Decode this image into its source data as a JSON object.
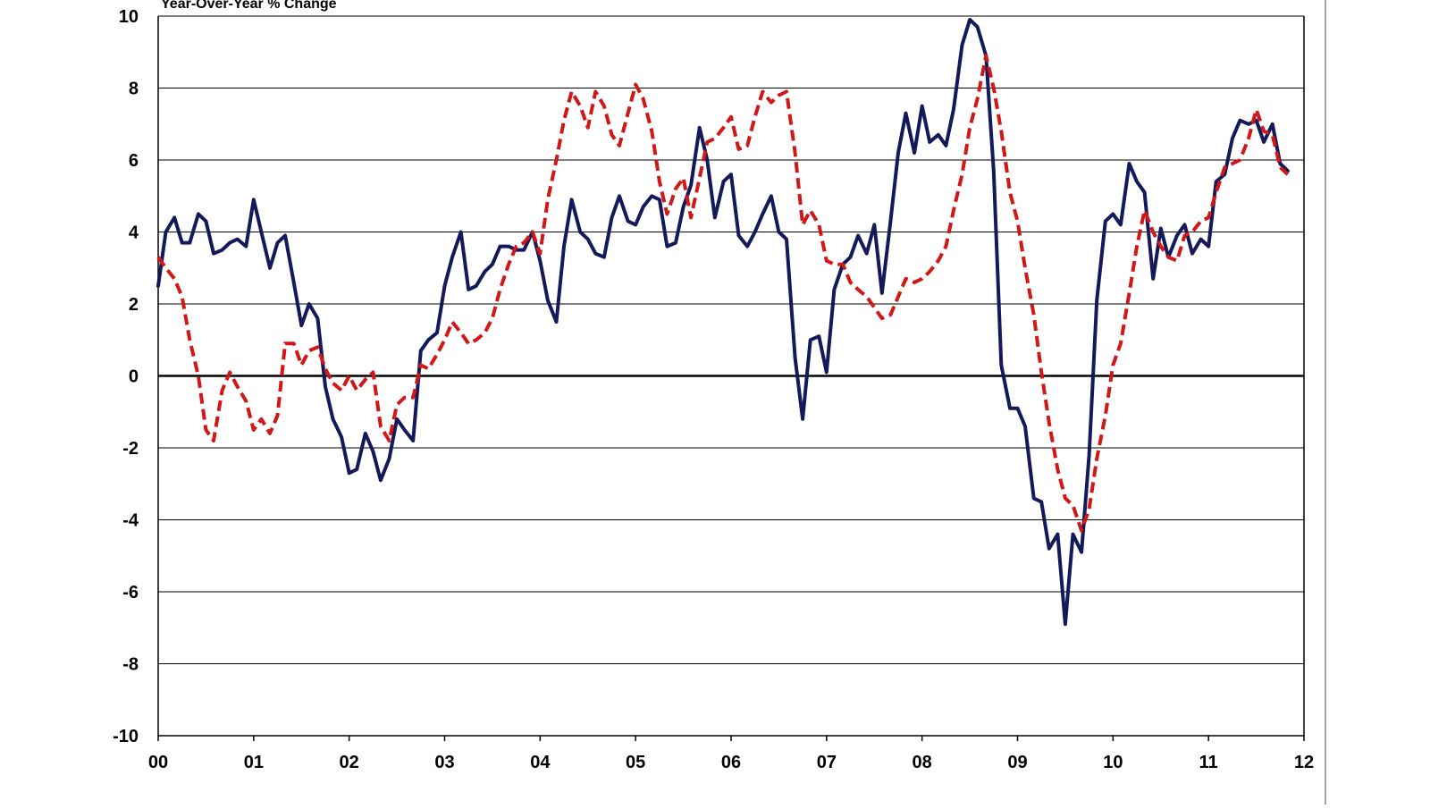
{
  "chart_data": {
    "type": "line",
    "subtitle": "Year-Over-Year % Change",
    "ylim": [
      -10,
      10
    ],
    "y_ticks": [
      "10",
      "8",
      "6",
      "4",
      "2",
      "0",
      "-2",
      "-4",
      "-6",
      "-8",
      "-10"
    ],
    "x_range": [
      0,
      12
    ],
    "x_ticks": [
      "00",
      "01",
      "02",
      "03",
      "04",
      "05",
      "06",
      "07",
      "08",
      "09",
      "10",
      "11",
      "12"
    ],
    "grid": true,
    "zero_line": true,
    "series": [
      {
        "style": "solid",
        "color": "#14195a",
        "points": [
          [
            0.0,
            2.5
          ],
          [
            0.08,
            4.0
          ],
          [
            0.17,
            4.4
          ],
          [
            0.25,
            3.7
          ],
          [
            0.33,
            3.7
          ],
          [
            0.42,
            4.5
          ],
          [
            0.5,
            4.3
          ],
          [
            0.58,
            3.4
          ],
          [
            0.67,
            3.5
          ],
          [
            0.75,
            3.7
          ],
          [
            0.83,
            3.8
          ],
          [
            0.92,
            3.6
          ],
          [
            1.0,
            4.9
          ],
          [
            1.08,
            4.0
          ],
          [
            1.17,
            3.0
          ],
          [
            1.25,
            3.7
          ],
          [
            1.33,
            3.9
          ],
          [
            1.42,
            2.6
          ],
          [
            1.5,
            1.4
          ],
          [
            1.58,
            2.0
          ],
          [
            1.67,
            1.6
          ],
          [
            1.75,
            -0.3
          ],
          [
            1.83,
            -1.2
          ],
          [
            1.92,
            -1.7
          ],
          [
            2.0,
            -2.7
          ],
          [
            2.08,
            -2.6
          ],
          [
            2.17,
            -1.6
          ],
          [
            2.25,
            -2.1
          ],
          [
            2.33,
            -2.9
          ],
          [
            2.42,
            -2.3
          ],
          [
            2.5,
            -1.2
          ],
          [
            2.58,
            -1.5
          ],
          [
            2.67,
            -1.8
          ],
          [
            2.75,
            0.7
          ],
          [
            2.83,
            1.0
          ],
          [
            2.92,
            1.2
          ],
          [
            3.0,
            2.5
          ],
          [
            3.08,
            3.3
          ],
          [
            3.17,
            4.0
          ],
          [
            3.25,
            2.4
          ],
          [
            3.33,
            2.5
          ],
          [
            3.42,
            2.9
          ],
          [
            3.5,
            3.1
          ],
          [
            3.58,
            3.6
          ],
          [
            3.67,
            3.6
          ],
          [
            3.75,
            3.5
          ],
          [
            3.83,
            3.5
          ],
          [
            3.92,
            4.0
          ],
          [
            4.0,
            3.2
          ],
          [
            4.08,
            2.1
          ],
          [
            4.17,
            1.5
          ],
          [
            4.25,
            3.6
          ],
          [
            4.33,
            4.9
          ],
          [
            4.42,
            4.0
          ],
          [
            4.5,
            3.8
          ],
          [
            4.58,
            3.4
          ],
          [
            4.67,
            3.3
          ],
          [
            4.75,
            4.4
          ],
          [
            4.83,
            5.0
          ],
          [
            4.92,
            4.3
          ],
          [
            5.0,
            4.2
          ],
          [
            5.08,
            4.7
          ],
          [
            5.17,
            5.0
          ],
          [
            5.25,
            4.9
          ],
          [
            5.33,
            3.6
          ],
          [
            5.42,
            3.7
          ],
          [
            5.5,
            4.7
          ],
          [
            5.58,
            5.3
          ],
          [
            5.67,
            6.9
          ],
          [
            5.75,
            6.0
          ],
          [
            5.83,
            4.4
          ],
          [
            5.92,
            5.4
          ],
          [
            6.0,
            5.6
          ],
          [
            6.08,
            3.9
          ],
          [
            6.17,
            3.6
          ],
          [
            6.25,
            4.0
          ],
          [
            6.33,
            4.5
          ],
          [
            6.42,
            5.0
          ],
          [
            6.5,
            4.0
          ],
          [
            6.58,
            3.8
          ],
          [
            6.67,
            0.5
          ],
          [
            6.75,
            -1.2
          ],
          [
            6.83,
            1.0
          ],
          [
            6.92,
            1.1
          ],
          [
            7.0,
            0.1
          ],
          [
            7.08,
            2.4
          ],
          [
            7.17,
            3.1
          ],
          [
            7.25,
            3.3
          ],
          [
            7.33,
            3.9
          ],
          [
            7.42,
            3.4
          ],
          [
            7.5,
            4.2
          ],
          [
            7.58,
            2.3
          ],
          [
            7.67,
            4.3
          ],
          [
            7.75,
            6.2
          ],
          [
            7.83,
            7.3
          ],
          [
            7.92,
            6.2
          ],
          [
            8.0,
            7.5
          ],
          [
            8.08,
            6.5
          ],
          [
            8.17,
            6.7
          ],
          [
            8.25,
            6.4
          ],
          [
            8.33,
            7.4
          ],
          [
            8.42,
            9.2
          ],
          [
            8.5,
            9.9
          ],
          [
            8.58,
            9.7
          ],
          [
            8.67,
            8.9
          ],
          [
            8.75,
            5.7
          ],
          [
            8.83,
            0.3
          ],
          [
            8.92,
            -0.9
          ],
          [
            9.0,
            -0.9
          ],
          [
            9.08,
            -1.4
          ],
          [
            9.17,
            -3.4
          ],
          [
            9.25,
            -3.5
          ],
          [
            9.33,
            -4.8
          ],
          [
            9.42,
            -4.4
          ],
          [
            9.5,
            -6.9
          ],
          [
            9.58,
            -4.4
          ],
          [
            9.67,
            -4.9
          ],
          [
            9.75,
            -2.2
          ],
          [
            9.83,
            2.1
          ],
          [
            9.92,
            4.3
          ],
          [
            10.0,
            4.5
          ],
          [
            10.08,
            4.2
          ],
          [
            10.17,
            5.9
          ],
          [
            10.25,
            5.4
          ],
          [
            10.33,
            5.1
          ],
          [
            10.42,
            2.7
          ],
          [
            10.5,
            4.1
          ],
          [
            10.58,
            3.3
          ],
          [
            10.67,
            3.9
          ],
          [
            10.75,
            4.2
          ],
          [
            10.83,
            3.4
          ],
          [
            10.92,
            3.8
          ],
          [
            11.0,
            3.6
          ],
          [
            11.08,
            5.4
          ],
          [
            11.17,
            5.6
          ],
          [
            11.25,
            6.6
          ],
          [
            11.33,
            7.1
          ],
          [
            11.42,
            7.0
          ],
          [
            11.5,
            7.1
          ],
          [
            11.58,
            6.5
          ],
          [
            11.67,
            7.0
          ],
          [
            11.75,
            5.9
          ],
          [
            11.83,
            5.7
          ]
        ]
      },
      {
        "style": "dashed",
        "color": "#d01818",
        "points": [
          [
            0.0,
            3.3
          ],
          [
            0.08,
            3.0
          ],
          [
            0.17,
            2.7
          ],
          [
            0.25,
            2.2
          ],
          [
            0.33,
            1.0
          ],
          [
            0.42,
            0.0
          ],
          [
            0.5,
            -1.5
          ],
          [
            0.58,
            -1.8
          ],
          [
            0.67,
            -0.4
          ],
          [
            0.75,
            0.1
          ],
          [
            0.83,
            -0.3
          ],
          [
            0.92,
            -0.7
          ],
          [
            1.0,
            -1.5
          ],
          [
            1.08,
            -1.2
          ],
          [
            1.17,
            -1.6
          ],
          [
            1.25,
            -1.1
          ],
          [
            1.33,
            0.9
          ],
          [
            1.42,
            0.9
          ],
          [
            1.5,
            0.3
          ],
          [
            1.58,
            0.7
          ],
          [
            1.67,
            0.8
          ],
          [
            1.75,
            0.2
          ],
          [
            1.83,
            -0.2
          ],
          [
            1.92,
            -0.4
          ],
          [
            2.0,
            0.0
          ],
          [
            2.08,
            -0.4
          ],
          [
            2.17,
            -0.1
          ],
          [
            2.25,
            0.1
          ],
          [
            2.33,
            -1.4
          ],
          [
            2.42,
            -1.8
          ],
          [
            2.5,
            -0.8
          ],
          [
            2.58,
            -0.6
          ],
          [
            2.67,
            -0.6
          ],
          [
            2.75,
            0.3
          ],
          [
            2.83,
            0.2
          ],
          [
            2.92,
            0.6
          ],
          [
            3.0,
            1.0
          ],
          [
            3.08,
            1.5
          ],
          [
            3.17,
            1.2
          ],
          [
            3.25,
            0.9
          ],
          [
            3.33,
            1.0
          ],
          [
            3.42,
            1.2
          ],
          [
            3.5,
            1.6
          ],
          [
            3.58,
            2.4
          ],
          [
            3.67,
            3.1
          ],
          [
            3.75,
            3.6
          ],
          [
            3.83,
            3.7
          ],
          [
            3.92,
            4.0
          ],
          [
            4.0,
            3.4
          ],
          [
            4.08,
            4.9
          ],
          [
            4.17,
            6.0
          ],
          [
            4.25,
            7.1
          ],
          [
            4.33,
            7.9
          ],
          [
            4.42,
            7.5
          ],
          [
            4.5,
            6.9
          ],
          [
            4.58,
            7.9
          ],
          [
            4.67,
            7.5
          ],
          [
            4.75,
            6.7
          ],
          [
            4.83,
            6.4
          ],
          [
            4.92,
            7.3
          ],
          [
            5.0,
            8.1
          ],
          [
            5.08,
            7.7
          ],
          [
            5.17,
            6.8
          ],
          [
            5.25,
            5.4
          ],
          [
            5.33,
            4.5
          ],
          [
            5.42,
            5.2
          ],
          [
            5.5,
            5.5
          ],
          [
            5.58,
            4.4
          ],
          [
            5.67,
            5.5
          ],
          [
            5.75,
            6.5
          ],
          [
            5.83,
            6.6
          ],
          [
            5.92,
            6.9
          ],
          [
            6.0,
            7.2
          ],
          [
            6.08,
            6.3
          ],
          [
            6.17,
            6.4
          ],
          [
            6.25,
            7.2
          ],
          [
            6.33,
            7.9
          ],
          [
            6.42,
            7.6
          ],
          [
            6.5,
            7.8
          ],
          [
            6.58,
            7.9
          ],
          [
            6.67,
            6.2
          ],
          [
            6.75,
            4.2
          ],
          [
            6.83,
            4.6
          ],
          [
            6.92,
            4.2
          ],
          [
            7.0,
            3.2
          ],
          [
            7.08,
            3.1
          ],
          [
            7.17,
            3.1
          ],
          [
            7.25,
            2.6
          ],
          [
            7.33,
            2.4
          ],
          [
            7.42,
            2.2
          ],
          [
            7.5,
            1.9
          ],
          [
            7.58,
            1.6
          ],
          [
            7.67,
            1.7
          ],
          [
            7.75,
            2.2
          ],
          [
            7.83,
            2.7
          ],
          [
            7.92,
            2.6
          ],
          [
            8.0,
            2.7
          ],
          [
            8.08,
            2.9
          ],
          [
            8.17,
            3.2
          ],
          [
            8.25,
            3.6
          ],
          [
            8.33,
            4.6
          ],
          [
            8.42,
            5.6
          ],
          [
            8.5,
            6.9
          ],
          [
            8.58,
            7.7
          ],
          [
            8.67,
            8.9
          ],
          [
            8.75,
            8.0
          ],
          [
            8.83,
            6.8
          ],
          [
            8.92,
            5.1
          ],
          [
            9.0,
            4.3
          ],
          [
            9.08,
            3.0
          ],
          [
            9.17,
            1.7
          ],
          [
            9.25,
            0.1
          ],
          [
            9.33,
            -1.3
          ],
          [
            9.42,
            -2.6
          ],
          [
            9.5,
            -3.4
          ],
          [
            9.58,
            -3.6
          ],
          [
            9.67,
            -4.3
          ],
          [
            9.75,
            -3.7
          ],
          [
            9.83,
            -2.3
          ],
          [
            9.92,
            -1.1
          ],
          [
            10.0,
            0.3
          ],
          [
            10.08,
            0.9
          ],
          [
            10.17,
            2.3
          ],
          [
            10.25,
            3.6
          ],
          [
            10.33,
            4.6
          ],
          [
            10.42,
            4.0
          ],
          [
            10.5,
            3.6
          ],
          [
            10.58,
            3.3
          ],
          [
            10.67,
            3.2
          ],
          [
            10.75,
            3.9
          ],
          [
            10.83,
            4.0
          ],
          [
            10.92,
            4.3
          ],
          [
            11.0,
            4.4
          ],
          [
            11.08,
            5.1
          ],
          [
            11.17,
            5.8
          ],
          [
            11.25,
            5.9
          ],
          [
            11.33,
            6.0
          ],
          [
            11.42,
            6.6
          ],
          [
            11.5,
            7.4
          ],
          [
            11.58,
            6.8
          ],
          [
            11.67,
            6.7
          ],
          [
            11.75,
            5.8
          ],
          [
            11.83,
            5.6
          ]
        ]
      }
    ]
  }
}
